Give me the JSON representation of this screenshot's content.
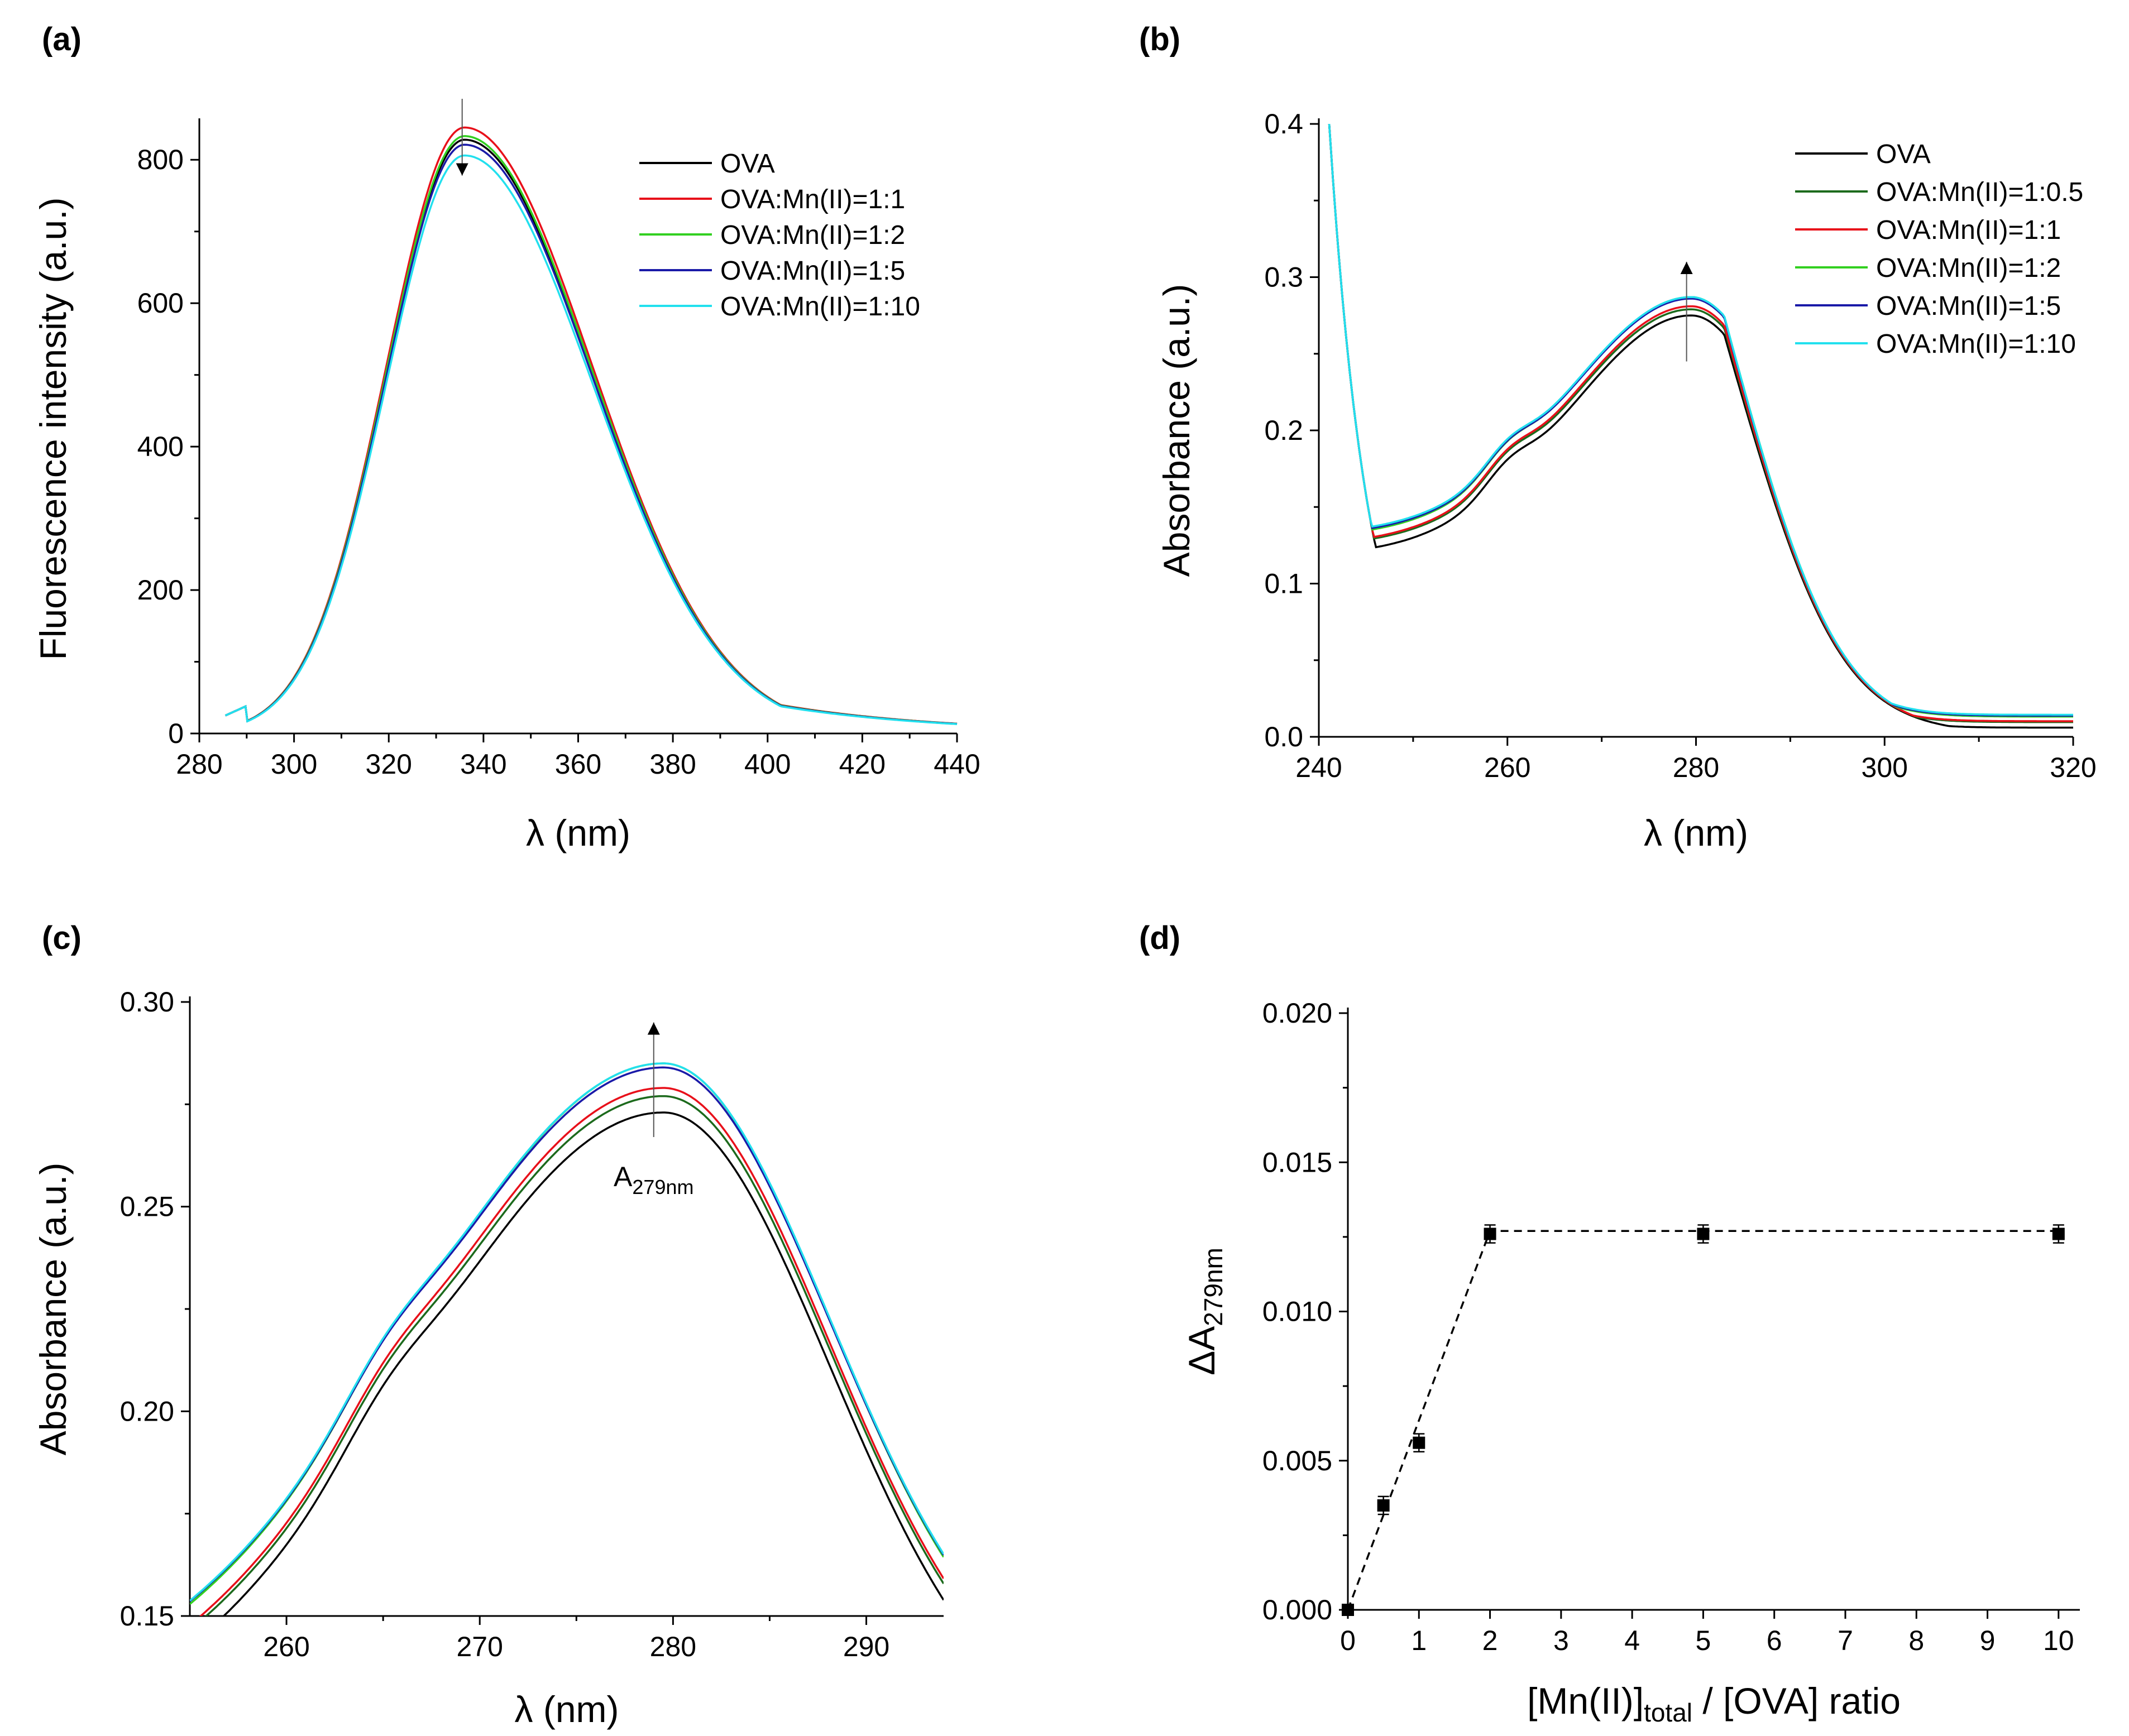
{
  "figure": {
    "panels": [
      {
        "id": "a",
        "label": "(a)"
      },
      {
        "id": "b",
        "label": "(b)"
      },
      {
        "id": "c",
        "label": "(c)"
      },
      {
        "id": "d",
        "label": "(d)"
      }
    ]
  },
  "chart_data": [
    {
      "panel": "a",
      "type": "line",
      "title": "",
      "xlabel": "λ (nm)",
      "ylabel": "Fluorescence intensity (a.u.)",
      "xlim": [
        280,
        440
      ],
      "ylim": [
        0,
        850
      ],
      "xticks": [
        280,
        300,
        320,
        340,
        360,
        380,
        400,
        420,
        440
      ],
      "yticks": [
        0,
        200,
        400,
        600,
        800
      ],
      "legend_position": "top-right",
      "arrow": "down",
      "series": [
        {
          "name": "OVA",
          "color": "#000000",
          "peak": 828
        },
        {
          "name": "OVA:Mn(II)=1:1",
          "color": "#e8101a",
          "peak": 845
        },
        {
          "name": "OVA:Mn(II)=1:2",
          "color": "#32d020",
          "peak": 833
        },
        {
          "name": "OVA:Mn(II)=1:5",
          "color": "#1a1aa8",
          "peak": 821
        },
        {
          "name": "OVA:Mn(II)=1:10",
          "color": "#22e0ee",
          "peak": 806
        }
      ]
    },
    {
      "panel": "b",
      "type": "line",
      "title": "",
      "xlabel": "λ (nm)",
      "ylabel": "Absorbance (a.u.)",
      "xlim": [
        240,
        320
      ],
      "ylim": [
        0.0,
        0.4
      ],
      "xticks": [
        240,
        260,
        280,
        300,
        320
      ],
      "yticks": [
        "0.0",
        "0.1",
        "0.2",
        "0.3",
        "0.4"
      ],
      "legend_position": "top-right",
      "arrow": "up",
      "series": [
        {
          "name": "OVA",
          "color": "#000000",
          "peak": 0.275
        },
        {
          "name": "OVA:Mn(II)=1:0.5",
          "color": "#1c6a1c",
          "peak": 0.279
        },
        {
          "name": "OVA:Mn(II)=1:1",
          "color": "#e8101a",
          "peak": 0.281
        },
        {
          "name": "OVA:Mn(II)=1:2",
          "color": "#32d020",
          "peak": 0.287
        },
        {
          "name": "OVA:Mn(II)=1:5",
          "color": "#1a1aa8",
          "peak": 0.286
        },
        {
          "name": "OVA:Mn(II)=1:10",
          "color": "#22e0ee",
          "peak": 0.287
        }
      ]
    },
    {
      "panel": "c",
      "type": "line",
      "title": "",
      "xlabel": "λ (nm)",
      "ylabel": "Absorbance (a.u.)",
      "xlim": [
        255,
        294
      ],
      "ylim": [
        0.15,
        0.3
      ],
      "xticks": [
        260,
        270,
        280,
        290
      ],
      "yticks": [
        "0.15",
        "0.20",
        "0.25",
        "0.30"
      ],
      "arrow": "up",
      "annotation": {
        "base": "A",
        "sub": "279nm"
      },
      "series": [
        {
          "name": "OVA",
          "color": "#000000",
          "peak": 0.275
        },
        {
          "name": "OVA:Mn(II)=1:0.5",
          "color": "#1c6a1c",
          "peak": 0.279
        },
        {
          "name": "OVA:Mn(II)=1:1",
          "color": "#e8101a",
          "peak": 0.281
        },
        {
          "name": "OVA:Mn(II)=1:2",
          "color": "#32d020",
          "peak": 0.287
        },
        {
          "name": "OVA:Mn(II)=1:5",
          "color": "#1a1aa8",
          "peak": 0.286
        },
        {
          "name": "OVA:Mn(II)=1:10",
          "color": "#22e0ee",
          "peak": 0.287
        }
      ]
    },
    {
      "panel": "d",
      "type": "scatter",
      "title": "",
      "xlabel_parts": [
        "[Mn(II)]",
        "total",
        " / [OVA] ratio"
      ],
      "ylabel_parts": [
        "ΔA",
        "279nm"
      ],
      "xlim": [
        0,
        10.3
      ],
      "ylim": [
        0,
        0.02
      ],
      "xticks": [
        0,
        1,
        2,
        3,
        4,
        5,
        6,
        7,
        8,
        9,
        10
      ],
      "yticks": [
        "0.000",
        "0.005",
        "0.010",
        "0.015",
        "0.020"
      ],
      "x": [
        0,
        0.5,
        1,
        2,
        5,
        10
      ],
      "y": [
        0.0,
        0.0035,
        0.0056,
        0.0126,
        0.0126,
        0.0126
      ],
      "error": [
        0,
        0.0003,
        0.0003,
        0.0003,
        0.0003,
        0.0003
      ],
      "fit_line": {
        "x": [
          0,
          2,
          10
        ],
        "y": [
          0.0,
          0.0127,
          0.0127
        ],
        "style": "dashed"
      }
    }
  ]
}
